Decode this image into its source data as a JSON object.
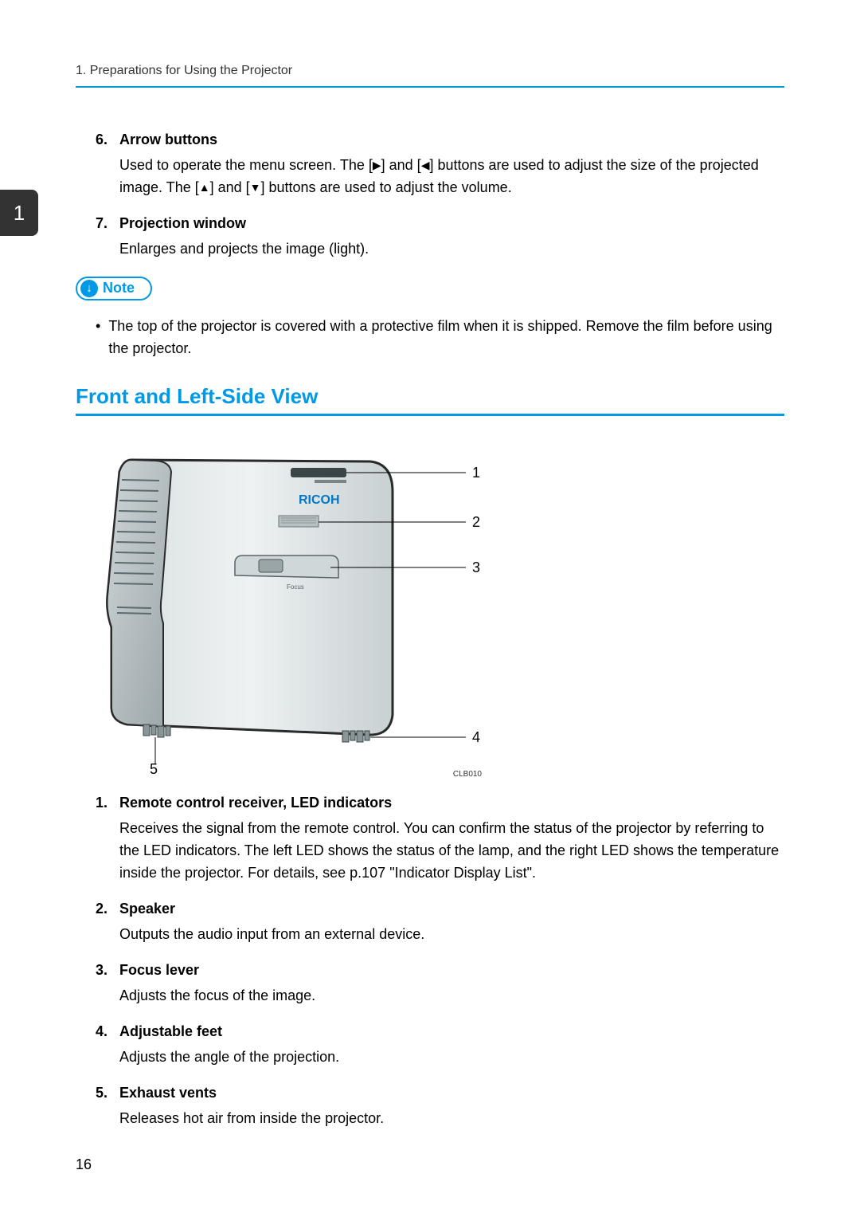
{
  "header": "1. Preparations for Using the Projector",
  "chapter_tab": "1",
  "top_items": [
    {
      "num": "6.",
      "title": "Arrow buttons",
      "body_segments": [
        "Used to operate the menu screen. The [",
        "▶",
        "] and [",
        "◀",
        "] buttons are used to adjust the size of the projected image. The [",
        "▲",
        "] and [",
        "▼",
        "] buttons are used to adjust the volume."
      ]
    },
    {
      "num": "7.",
      "title": "Projection window",
      "body": "Enlarges and projects the image (light)."
    }
  ],
  "note_label": "Note",
  "note_bullet": "The top of the projector is covered with a protective film when it is shipped. Remove the film before using the projector.",
  "section_title": "Front and Left-Side View",
  "figure": {
    "brand": "RICOH",
    "focus_label": "Focus",
    "callouts": [
      "1",
      "2",
      "3",
      "4",
      "5"
    ],
    "id": "CLB010",
    "colors": {
      "body_light": "#e8edef",
      "body_dark": "#c2cbce",
      "outline": "#2a2a2a",
      "brand_color": "#0077c8"
    }
  },
  "bottom_items": [
    {
      "num": "1.",
      "title": "Remote control receiver, LED indicators",
      "body": "Receives the signal from the remote control. You can confirm the status of the projector by referring to the LED indicators. The left LED shows the status of the lamp, and the right LED shows the temperature inside the projector. For details, see p.107 \"Indicator Display List\"."
    },
    {
      "num": "2.",
      "title": "Speaker",
      "body": "Outputs the audio input from an external device."
    },
    {
      "num": "3.",
      "title": "Focus lever",
      "body": "Adjusts the focus of the image."
    },
    {
      "num": "4.",
      "title": "Adjustable feet",
      "body": "Adjusts the angle of the projection."
    },
    {
      "num": "5.",
      "title": "Exhaust vents",
      "body": "Releases hot air from inside the projector."
    }
  ],
  "page_number": "16"
}
